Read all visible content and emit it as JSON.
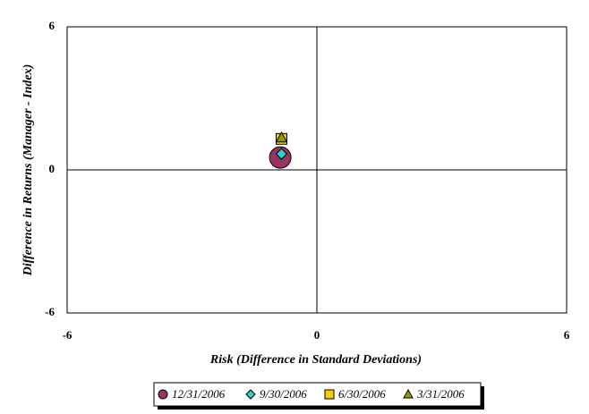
{
  "chart_data": {
    "type": "scatter",
    "x_label": "Risk (Difference in Standard Deviations)",
    "y_label": "Difference in Returns (Manager - Index)",
    "xlim": [
      -6,
      6
    ],
    "ylim": [
      -6,
      6
    ],
    "xticks": [
      -6,
      0,
      6
    ],
    "yticks": [
      -6,
      0,
      6
    ],
    "legend": "bottom",
    "series": [
      {
        "name": "12/31/2006",
        "color": "#993366",
        "marker": "circle",
        "x": [
          -0.88
        ],
        "y": [
          0.52
        ]
      },
      {
        "name": "9/30/2006",
        "color": "#33cccc",
        "marker": "diamond",
        "x": [
          -0.85
        ],
        "y": [
          0.67
        ]
      },
      {
        "name": "6/30/2006",
        "color": "#ffcc00",
        "marker": "square",
        "x": [
          -0.85
        ],
        "y": [
          1.3
        ]
      },
      {
        "name": "3/31/2006",
        "color": "#999900",
        "marker": "triangle",
        "x": [
          -0.85
        ],
        "y": [
          1.35
        ]
      }
    ]
  }
}
